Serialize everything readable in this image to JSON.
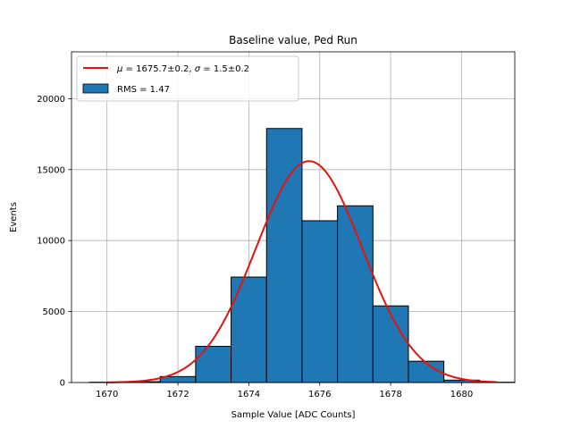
{
  "chart_data": {
    "type": "bar",
    "title": "Baseline value, Ped Run",
    "xlabel": "Sample Value [ADC Counts]",
    "ylabel": "Events",
    "xlim": [
      1669,
      1681.5
    ],
    "ylim": [
      0,
      23300
    ],
    "x_ticks": [
      1670,
      1672,
      1674,
      1676,
      1678,
      1680
    ],
    "y_ticks": [
      0,
      5000,
      10000,
      15000,
      20000
    ],
    "grid": true,
    "legend_position": "top-left",
    "histogram": {
      "name": "RMS = 1.47",
      "color": "#1f77b4",
      "edge_color": "#000000",
      "bins": [
        {
          "left": 1669.5,
          "right": 1670.5,
          "count": 20
        },
        {
          "left": 1670.5,
          "right": 1671.5,
          "count": 60
        },
        {
          "left": 1671.5,
          "right": 1672.5,
          "count": 420
        },
        {
          "left": 1672.5,
          "right": 1673.5,
          "count": 2550
        },
        {
          "left": 1673.5,
          "right": 1674.5,
          "count": 7430
        },
        {
          "left": 1674.5,
          "right": 1675.5,
          "count": 17900
        },
        {
          "left": 1675.5,
          "right": 1676.5,
          "count": 11400
        },
        {
          "left": 1676.5,
          "right": 1677.5,
          "count": 12450
        },
        {
          "left": 1677.5,
          "right": 1678.5,
          "count": 5400
        },
        {
          "left": 1678.5,
          "right": 1679.5,
          "count": 1500
        },
        {
          "left": 1679.5,
          "right": 1680.5,
          "count": 170
        },
        {
          "left": 1680.5,
          "right": 1681.5,
          "count": 20
        }
      ]
    },
    "fit": {
      "name": "μ = 1675.7±0.2, σ = 1.5±0.2",
      "legend_mu": "μ",
      "legend_mu_value": " = 1675.7±0.2, ",
      "legend_sigma": "σ",
      "legend_sigma_value": " = 1.5±0.2",
      "type": "gaussian",
      "mu": 1675.7,
      "sigma": 1.5,
      "amplitude": 15600,
      "x_range": [
        1670,
        1681
      ],
      "color": "#e8120c"
    }
  }
}
